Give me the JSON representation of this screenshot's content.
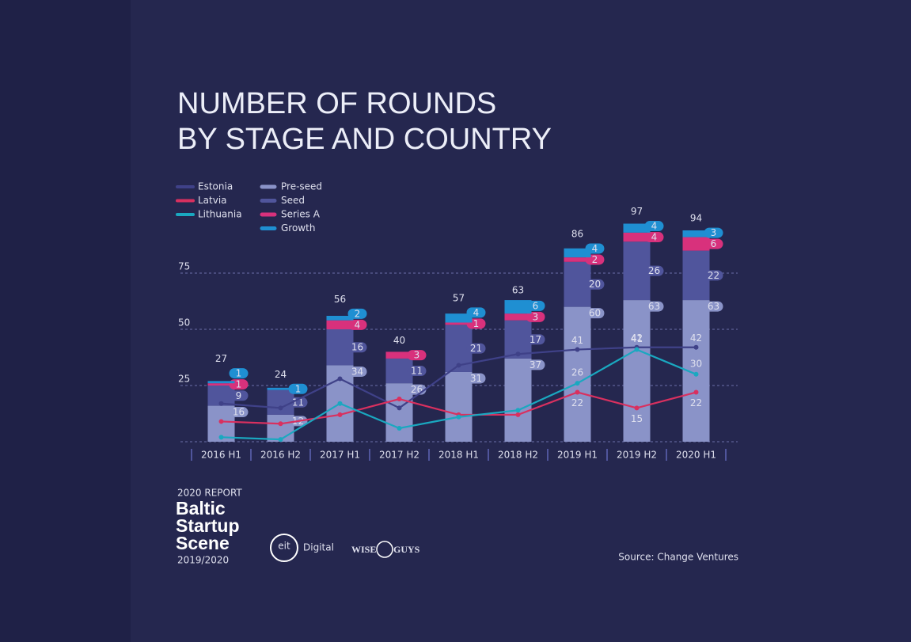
{
  "chart_data": {
    "type": "bar",
    "stacked": true,
    "title_lines": [
      "NUMBER OF ROUNDS",
      "BY STAGE AND COUNTRY"
    ],
    "categories": [
      "2016 H1",
      "2016 H2",
      "2017 H1",
      "2017 H2",
      "2018 H1",
      "2018 H2",
      "2019 H1",
      "2019 H2",
      "2020 H1"
    ],
    "series": [
      {
        "name": "Pre-seed",
        "color": "#8a93c8",
        "values": [
          16,
          12,
          34,
          26,
          31,
          37,
          60,
          63,
          63
        ]
      },
      {
        "name": "Seed",
        "color": "#50559c",
        "values": [
          9,
          11,
          16,
          11,
          21,
          17,
          20,
          26,
          22
        ]
      },
      {
        "name": "Series A",
        "color": "#d8317c",
        "values": [
          1,
          null,
          4,
          3,
          1,
          3,
          2,
          4,
          6
        ]
      },
      {
        "name": "Growth",
        "color": "#1f8fd2",
        "values": [
          1,
          1,
          2,
          null,
          4,
          6,
          4,
          4,
          3
        ]
      }
    ],
    "totals": [
      27,
      24,
      56,
      40,
      57,
      63,
      86,
      97,
      94
    ],
    "line_series": [
      {
        "name": "Estonia",
        "color": "#3f4188",
        "values": [
          17,
          15,
          28,
          15,
          34,
          39,
          41,
          42,
          42
        ],
        "value_labels": [
          null,
          null,
          null,
          null,
          null,
          null,
          "41",
          "42",
          "42"
        ]
      },
      {
        "name": "Latvia",
        "color": "#d9305f",
        "values": [
          9,
          8,
          12,
          19,
          12,
          12,
          22,
          15,
          22
        ],
        "value_labels": [
          null,
          null,
          null,
          null,
          null,
          null,
          "22",
          "15",
          "22"
        ]
      },
      {
        "name": "Lithuania",
        "color": "#1aa8c0",
        "values": [
          2,
          1,
          17,
          6,
          11,
          14,
          26,
          41,
          30
        ],
        "value_labels": [
          null,
          null,
          null,
          null,
          null,
          null,
          "26",
          "41",
          "30"
        ]
      }
    ],
    "ylim": [
      0,
      100
    ],
    "yticks": [
      25,
      50,
      75
    ],
    "grid": true,
    "source": "Source: Change Ventures"
  },
  "branding": {
    "report": "2020 REPORT",
    "name_lines": [
      "Baltic",
      "Startup",
      "Scene"
    ],
    "years": "2019/2020",
    "partner1": [
      "eit",
      "Digital"
    ],
    "partner2": [
      "WISE",
      "GUYS"
    ]
  }
}
